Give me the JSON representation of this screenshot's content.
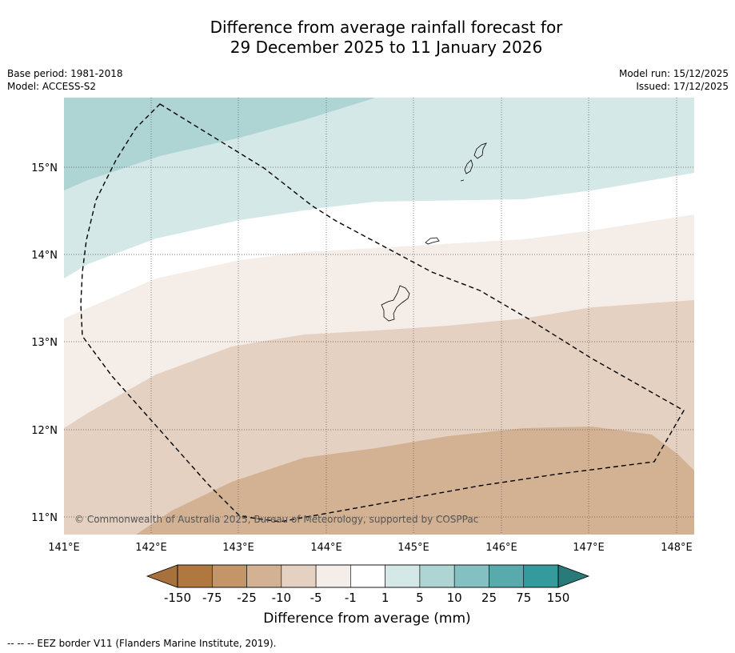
{
  "title": {
    "line1": "Difference from average rainfall forecast for",
    "line2": "29 December 2025 to 11 January 2026"
  },
  "meta": {
    "base_period": "Base period: 1981-2018",
    "model": "Model: ACCESS-S2",
    "model_run": "Model run: 15/12/2025",
    "issued": "Issued: 17/12/2025"
  },
  "map": {
    "lon_range": [
      141,
      148.2
    ],
    "lat_range": [
      10.8,
      15.8
    ],
    "lon_ticks": [
      {
        "value": 141,
        "label": "141°E"
      },
      {
        "value": 142,
        "label": "142°E"
      },
      {
        "value": 143,
        "label": "143°E"
      },
      {
        "value": 144,
        "label": "144°E"
      },
      {
        "value": 145,
        "label": "145°E"
      },
      {
        "value": 146,
        "label": "146°E"
      },
      {
        "value": 147,
        "label": "147°E"
      },
      {
        "value": 148,
        "label": "148°E"
      }
    ],
    "lat_ticks": [
      {
        "value": 15,
        "label": "15°N"
      },
      {
        "value": 14,
        "label": "14°N"
      },
      {
        "value": 13,
        "label": "13°N"
      },
      {
        "value": 12,
        "label": "12°N"
      },
      {
        "value": 11,
        "label": "11°N"
      }
    ],
    "copyright": "© Commonwealth of Australia 2025, Bureau of Meteorology, supported by COSPPac"
  },
  "colorbar": {
    "colors": [
      "#b0783e",
      "#c49567",
      "#d3b294",
      "#e4d1c1",
      "#f4ede8",
      "#ffffff",
      "#d5e8e8",
      "#aed4d4",
      "#84c0c1",
      "#59aaad",
      "#349a9c"
    ],
    "under_color": "#a8703a",
    "over_color": "#2a7a7a",
    "tick_labels": [
      "-150",
      "-75",
      "-25",
      "-10",
      "-5",
      "-1",
      "1",
      "5",
      "10",
      "25",
      "75",
      "150"
    ],
    "label": "Difference from average (mm)"
  },
  "footer": {
    "text": "--  --  -- EEZ border V11 (Flanders Marine Institute, 2019)."
  }
}
